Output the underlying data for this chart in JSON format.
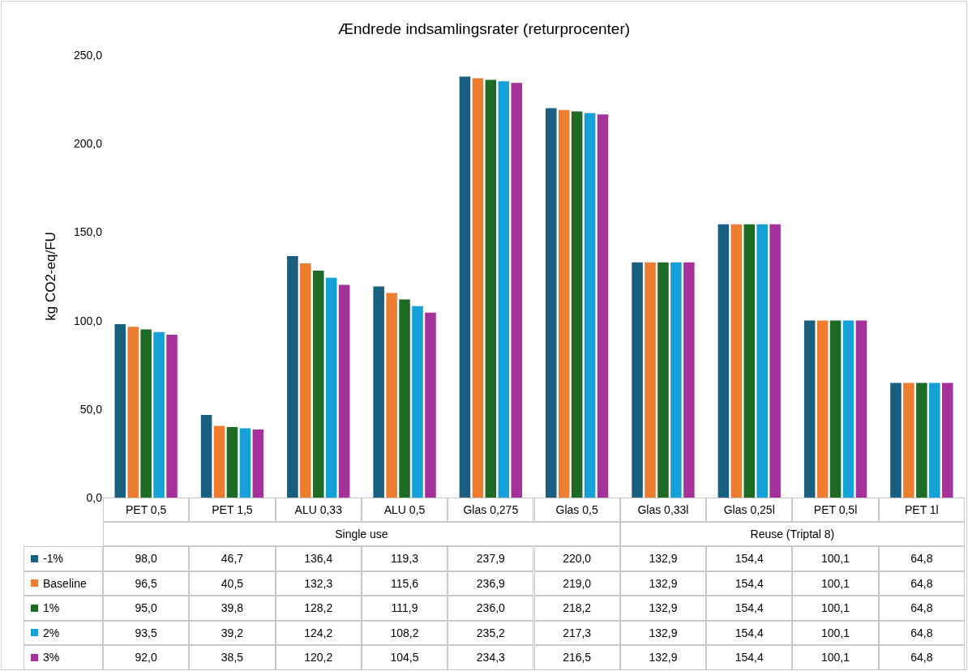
{
  "chart_data": {
    "type": "bar",
    "title": "Ændrede indsamlingsrater (returprocenter)",
    "ylabel": "kg CO2-eq/FU",
    "categories": [
      "PET 0,5",
      "PET 1,5",
      "ALU 0,33",
      "ALU 0,5",
      "Glas 0,275",
      "Glas 0,5",
      "Glas 0,33l",
      "Glas 0,25l",
      "PET 0,5l",
      "PET 1l"
    ],
    "annotations": [
      "Single use",
      "Reuse (Triptal 8)"
    ],
    "series": [
      {
        "name": "-1%",
        "color": "#1a5f80",
        "values": [
          98.0,
          46.7,
          136.4,
          119.3,
          237.9,
          220.0,
          132.9,
          154.4,
          100.1,
          64.8
        ],
        "value_labels": [
          "98,0",
          "46,7",
          "136,4",
          "119,3",
          "237,9",
          "220,0",
          "132,9",
          "154,4",
          "100,1",
          "64,8"
        ]
      },
      {
        "name": "Baseline",
        "color": "#ed7d31",
        "values": [
          96.5,
          40.5,
          132.3,
          115.6,
          236.9,
          219.0,
          132.9,
          154.4,
          100.1,
          64.8
        ],
        "value_labels": [
          "96,5",
          "40,5",
          "132,3",
          "115,6",
          "236,9",
          "219,0",
          "132,9",
          "154,4",
          "100,1",
          "64,8"
        ]
      },
      {
        "name": "1%",
        "color": "#1e6b25",
        "values": [
          95.0,
          39.8,
          128.2,
          111.9,
          236.0,
          218.2,
          132.9,
          154.4,
          100.1,
          64.8
        ],
        "value_labels": [
          "95,0",
          "39,8",
          "128,2",
          "111,9",
          "236,0",
          "218,2",
          "132,9",
          "154,4",
          "100,1",
          "64,8"
        ]
      },
      {
        "name": "2%",
        "color": "#16a0d8",
        "values": [
          93.5,
          39.2,
          124.2,
          108.2,
          235.2,
          217.3,
          132.9,
          154.4,
          100.1,
          64.8
        ],
        "value_labels": [
          "93,5",
          "39,2",
          "124,2",
          "108,2",
          "235,2",
          "217,3",
          "132,9",
          "154,4",
          "100,1",
          "64,8"
        ]
      },
      {
        "name": "3%",
        "color": "#a5329a",
        "values": [
          92.0,
          38.5,
          120.2,
          104.5,
          234.3,
          216.5,
          132.9,
          154.4,
          100.1,
          64.8
        ],
        "value_labels": [
          "92,0",
          "38,5",
          "120,2",
          "104,5",
          "234,3",
          "216,5",
          "132,9",
          "154,4",
          "100,1",
          "64,8"
        ]
      }
    ],
    "ylim": [
      0,
      250
    ],
    "yticks": [
      {
        "value": 0,
        "label": "0,0"
      },
      {
        "value": 50,
        "label": "50,0"
      },
      {
        "value": 100,
        "label": "100,0"
      },
      {
        "value": 150,
        "label": "150,0"
      },
      {
        "value": 200,
        "label": "200,0"
      },
      {
        "value": 250,
        "label": "250,0"
      }
    ],
    "grid": false,
    "legend": "bottom left"
  }
}
